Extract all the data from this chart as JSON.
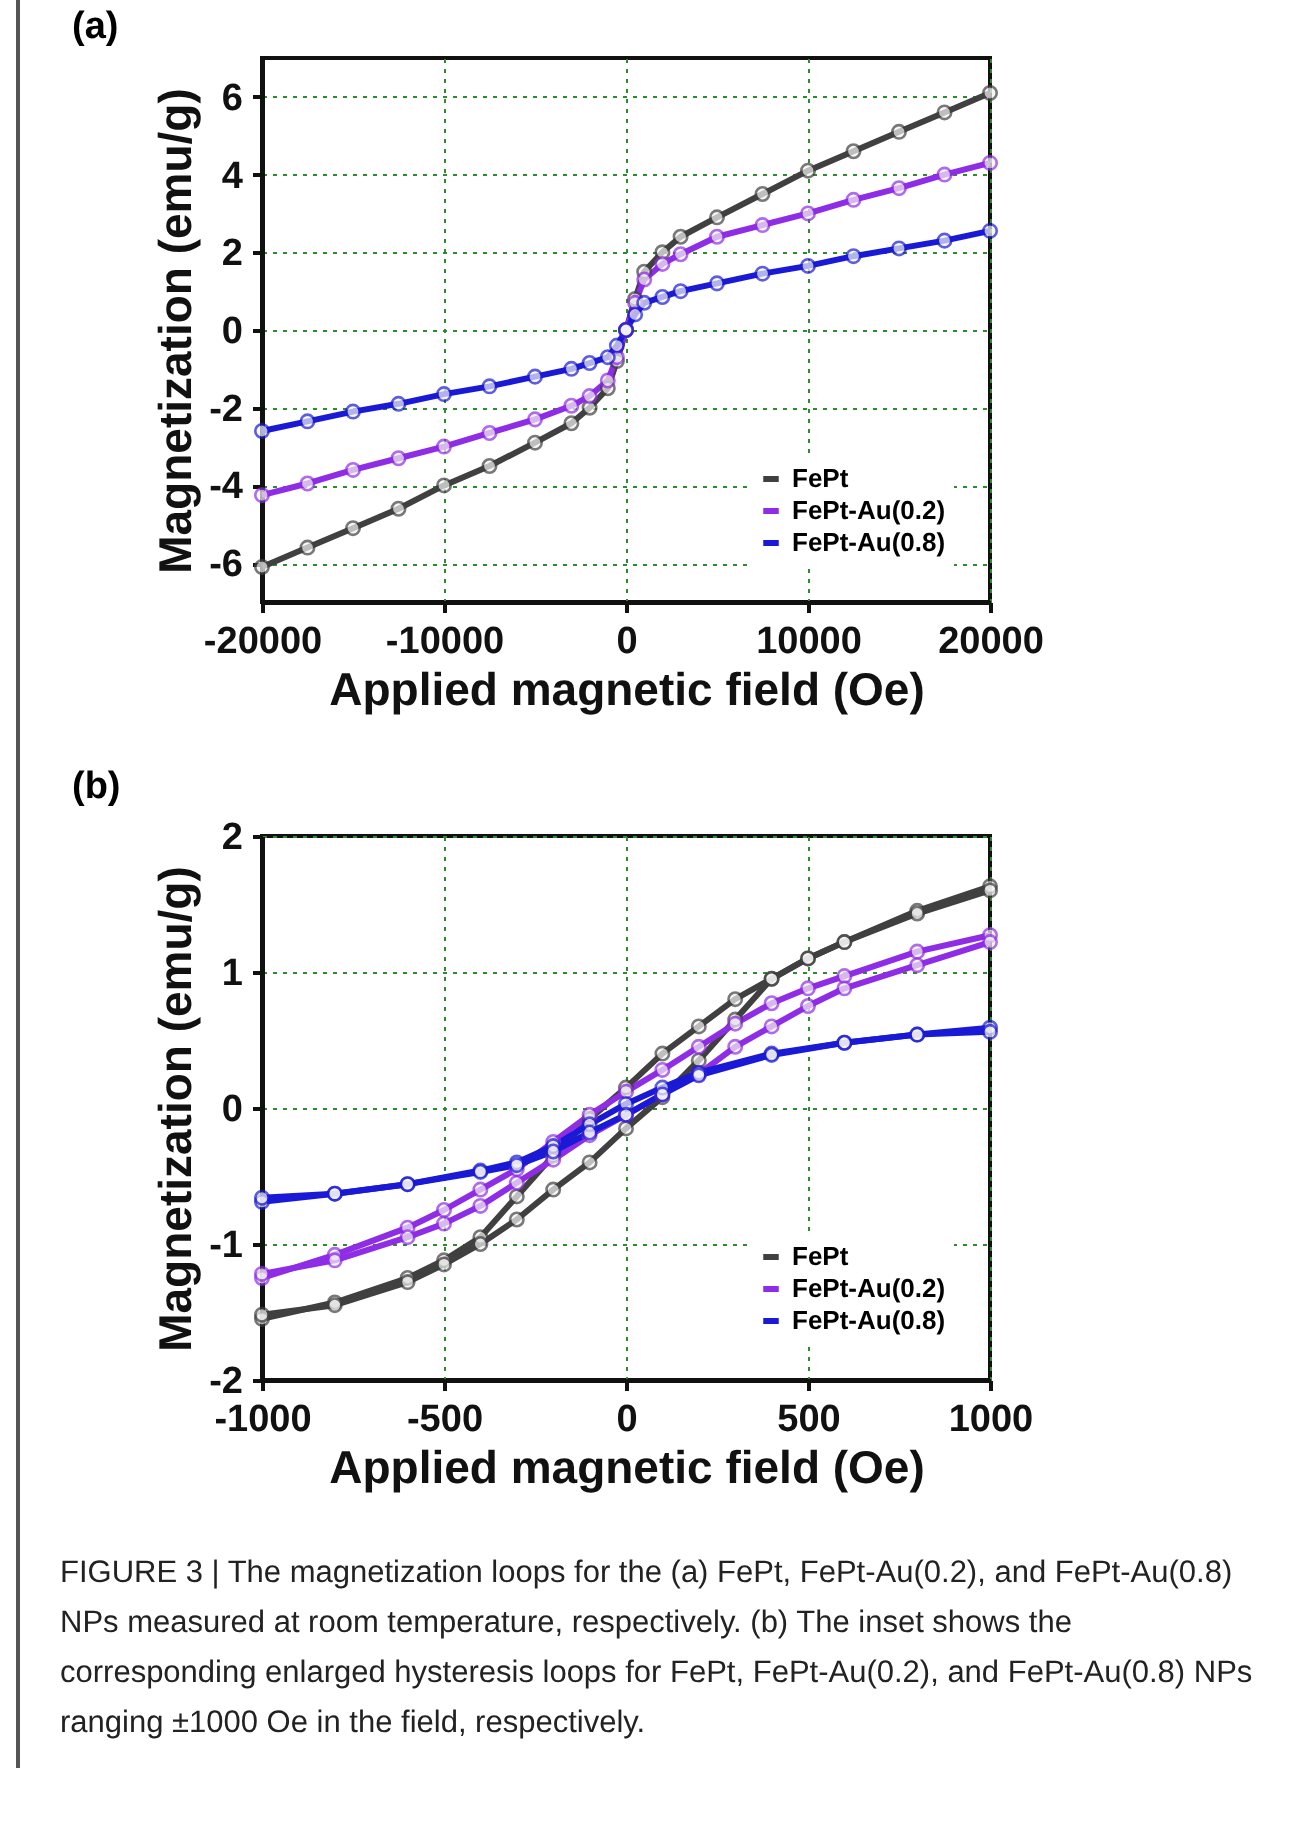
{
  "chart_data": [
    {
      "type": "line",
      "title": "(a)",
      "xlabel": "Applied magnetic field (Oe)",
      "ylabel": "Magnetization (emu/g)",
      "xlim": [
        -20000,
        20000
      ],
      "ylim": [
        -7,
        7
      ],
      "xticks": [
        -20000,
        -10000,
        0,
        10000,
        20000
      ],
      "yticks": [
        -6,
        -4,
        -2,
        0,
        2,
        4,
        6
      ],
      "grid": true,
      "legend": "bottom right",
      "marker": "circle",
      "line_style": "solid",
      "series": [
        {
          "name": "FePt",
          "color": "#404040",
          "x": [
            -20000,
            -17500,
            -15000,
            -12500,
            -10000,
            -7500,
            -5000,
            -3000,
            -2000,
            -1000,
            -500,
            0,
            500,
            1000,
            2000,
            3000,
            5000,
            7500,
            10000,
            12500,
            15000,
            17500,
            20000
          ],
          "values": [
            -6.1,
            -5.6,
            -5.1,
            -4.6,
            -4.0,
            -3.5,
            -2.9,
            -2.4,
            -2.0,
            -1.5,
            -0.8,
            0,
            0.8,
            1.5,
            2.0,
            2.4,
            2.9,
            3.5,
            4.1,
            4.6,
            5.1,
            5.6,
            6.1
          ]
        },
        {
          "name": "FePt-Au(0.2)",
          "color": "#8f2ce6",
          "x": [
            -20000,
            -17500,
            -15000,
            -12500,
            -10000,
            -7500,
            -5000,
            -3000,
            -2000,
            -1000,
            -500,
            0,
            500,
            1000,
            2000,
            3000,
            5000,
            7500,
            10000,
            12500,
            15000,
            17500,
            20000
          ],
          "values": [
            -4.25,
            -3.95,
            -3.6,
            -3.3,
            -3.0,
            -2.65,
            -2.3,
            -1.95,
            -1.7,
            -1.3,
            -0.7,
            0,
            0.7,
            1.3,
            1.7,
            1.95,
            2.4,
            2.7,
            3.0,
            3.35,
            3.65,
            4.0,
            4.3
          ]
        },
        {
          "name": "FePt-Au(0.8)",
          "color": "#1a1ad6",
          "x": [
            -20000,
            -17500,
            -15000,
            -12500,
            -10000,
            -7500,
            -5000,
            -3000,
            -2000,
            -1000,
            -500,
            0,
            500,
            1000,
            2000,
            3000,
            5000,
            7500,
            10000,
            12500,
            15000,
            17500,
            20000
          ],
          "values": [
            -2.6,
            -2.35,
            -2.1,
            -1.9,
            -1.65,
            -1.45,
            -1.2,
            -1.0,
            -0.85,
            -0.7,
            -0.4,
            0,
            0.4,
            0.7,
            0.85,
            1.0,
            1.2,
            1.45,
            1.65,
            1.9,
            2.1,
            2.3,
            2.55
          ]
        }
      ]
    },
    {
      "type": "line",
      "title": "(b)",
      "xlabel": "Applied magnetic field (Oe)",
      "ylabel": "Magnetization (emu/g)",
      "xlim": [
        -1000,
        1000
      ],
      "ylim": [
        -2,
        2
      ],
      "xticks": [
        -1000,
        -500,
        0,
        500,
        1000
      ],
      "yticks": [
        -2,
        -1,
        0,
        1,
        2
      ],
      "grid": true,
      "legend": "bottom right",
      "marker": "circle",
      "line_style": "solid",
      "series": [
        {
          "name": "FePt",
          "color": "#404040",
          "x": [
            -1000,
            -800,
            -600,
            -500,
            -400,
            -300,
            -200,
            -100,
            0,
            100,
            200,
            300,
            400,
            500,
            600,
            800,
            1000
          ],
          "values": [
            -1.55,
            -1.43,
            -1.25,
            -1.12,
            -0.95,
            -0.65,
            -0.35,
            -0.08,
            0.15,
            0.4,
            0.6,
            0.8,
            0.95,
            1.1,
            1.22,
            1.45,
            1.63
          ]
        },
        {
          "color": "#404040",
          "x": [
            -1000,
            -800,
            -600,
            -500,
            -400,
            -300,
            -200,
            -100,
            0,
            100,
            200,
            300,
            400,
            500,
            600,
            800,
            1000
          ],
          "values": [
            -1.52,
            -1.45,
            -1.28,
            -1.15,
            -1.0,
            -0.82,
            -0.6,
            -0.4,
            -0.15,
            0.08,
            0.35,
            0.65,
            0.95,
            1.1,
            1.22,
            1.43,
            1.6
          ]
        },
        {
          "name": "FePt-Au(0.2)",
          "color": "#8f2ce6",
          "x": [
            -1000,
            -800,
            -600,
            -500,
            -400,
            -300,
            -200,
            -100,
            0,
            100,
            200,
            300,
            400,
            500,
            600,
            800,
            1000
          ],
          "values": [
            -1.25,
            -1.08,
            -0.88,
            -0.75,
            -0.6,
            -0.45,
            -0.25,
            -0.05,
            0.12,
            0.28,
            0.45,
            0.62,
            0.77,
            0.88,
            0.97,
            1.15,
            1.27
          ]
        },
        {
          "color": "#8f2ce6",
          "x": [
            -1000,
            -800,
            -600,
            -500,
            -400,
            -300,
            -200,
            -100,
            0,
            100,
            200,
            300,
            400,
            500,
            600,
            800,
            1000
          ],
          "values": [
            -1.22,
            -1.12,
            -0.95,
            -0.85,
            -0.72,
            -0.55,
            -0.38,
            -0.2,
            -0.05,
            0.1,
            0.25,
            0.45,
            0.6,
            0.75,
            0.88,
            1.05,
            1.22
          ]
        },
        {
          "name": "FePt-Au(0.8)",
          "color": "#1a1ad6",
          "x": [
            -1000,
            -800,
            -600,
            -400,
            -300,
            -200,
            -100,
            0,
            100,
            200,
            400,
            600,
            800,
            1000
          ],
          "values": [
            -0.69,
            -0.63,
            -0.56,
            -0.46,
            -0.4,
            -0.28,
            -0.12,
            0.03,
            0.15,
            0.26,
            0.4,
            0.48,
            0.54,
            0.59
          ]
        },
        {
          "color": "#1a1ad6",
          "x": [
            -1000,
            -800,
            -600,
            -400,
            -300,
            -200,
            -100,
            0,
            100,
            200,
            400,
            600,
            800,
            1000
          ],
          "values": [
            -0.66,
            -0.63,
            -0.56,
            -0.47,
            -0.42,
            -0.32,
            -0.18,
            -0.05,
            0.1,
            0.24,
            0.39,
            0.48,
            0.54,
            0.56
          ]
        }
      ],
      "annotations": [
        "FIGURE 3 | The magnetization loops for the (a) FePt, FePt-Au(0.2), and FePt-Au(0.8) NPs measured at room temperature, respectively. (b) The inset shows the corresponding enlarged hysteresis loops for FePt, FePt-Au(0.2), and FePt-Au(0.8) NPs ranging ±1000 Oe in the field, respectively."
      ]
    }
  ]
}
